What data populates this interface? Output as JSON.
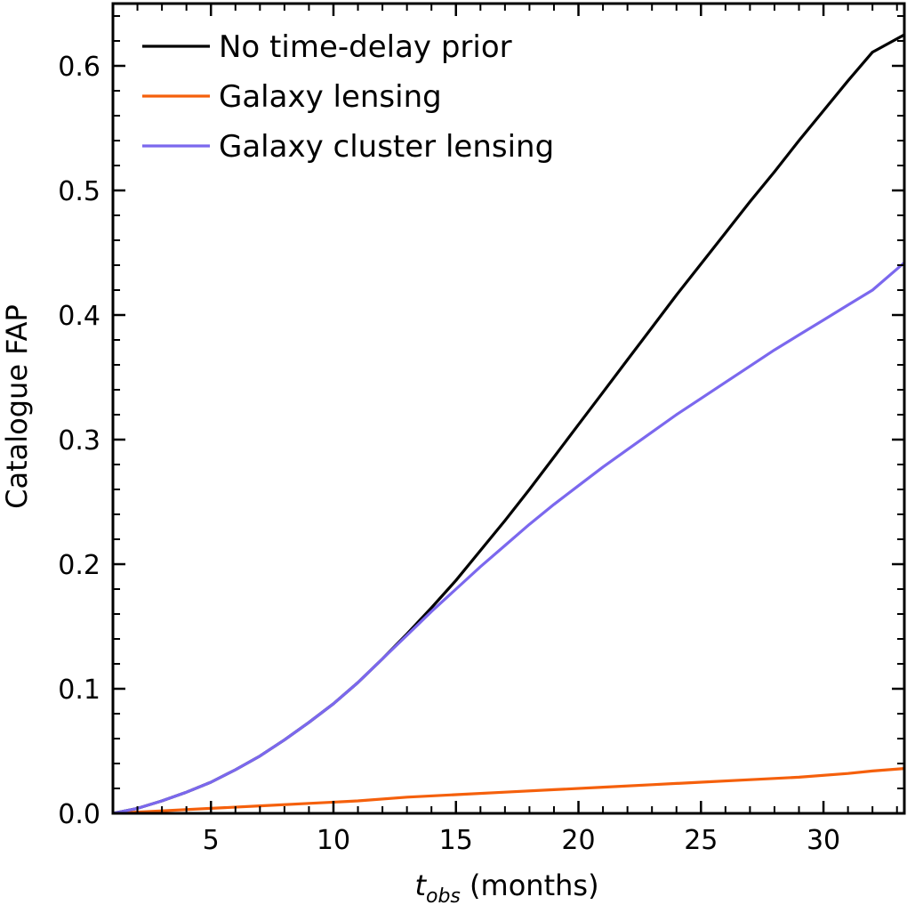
{
  "chart_data": {
    "type": "line",
    "xlabel": {
      "main": "t",
      "sub": "obs",
      "suffix": " (months)"
    },
    "ylabel": "Catalogue FAP",
    "xlim": [
      1,
      33.3
    ],
    "ylim": [
      0,
      0.65
    ],
    "xticks": [
      5,
      10,
      15,
      20,
      25,
      30
    ],
    "xtick_labels": [
      "5",
      "10",
      "15",
      "20",
      "25",
      "30"
    ],
    "yticks": [
      0.0,
      0.1,
      0.2,
      0.3,
      0.4,
      0.5,
      0.6
    ],
    "ytick_labels": [
      "0.0",
      "0.1",
      "0.2",
      "0.3",
      "0.4",
      "0.5",
      "0.6"
    ],
    "x_minor_step": 1,
    "y_minor_step": 0.02,
    "grid": false,
    "legend_position": "top-left",
    "series": [
      {
        "name": "No time-delay prior",
        "color": "#000000",
        "x": [
          1,
          2,
          3,
          4,
          5,
          6,
          7,
          8,
          9,
          10,
          11,
          12,
          13,
          14,
          15,
          16,
          17,
          18,
          19,
          20,
          21,
          22,
          23,
          24,
          25,
          26,
          27,
          28,
          29,
          30,
          31,
          32,
          33.3
        ],
        "y": [
          0.0,
          0.004,
          0.01,
          0.017,
          0.025,
          0.035,
          0.046,
          0.059,
          0.073,
          0.088,
          0.105,
          0.124,
          0.144,
          0.165,
          0.187,
          0.211,
          0.235,
          0.26,
          0.286,
          0.312,
          0.338,
          0.364,
          0.39,
          0.416,
          0.441,
          0.466,
          0.491,
          0.515,
          0.54,
          0.564,
          0.588,
          0.611,
          0.625
        ]
      },
      {
        "name": "Galaxy lensing",
        "color": "#f5600c",
        "x": [
          1,
          3,
          5,
          7,
          9,
          11,
          13,
          15,
          17,
          19,
          21,
          23,
          25,
          27,
          29,
          31,
          32,
          33.3
        ],
        "y": [
          0.0,
          0.002,
          0.004,
          0.006,
          0.008,
          0.01,
          0.013,
          0.015,
          0.017,
          0.019,
          0.021,
          0.023,
          0.025,
          0.027,
          0.029,
          0.032,
          0.034,
          0.036
        ]
      },
      {
        "name": "Galaxy cluster lensing",
        "color": "#7b68ee",
        "x": [
          1,
          2,
          3,
          4,
          5,
          6,
          7,
          8,
          9,
          10,
          11,
          12,
          13,
          14,
          15,
          16,
          17,
          18,
          19,
          20,
          21,
          22,
          23,
          24,
          25,
          26,
          27,
          28,
          29,
          30,
          31,
          32,
          33.3
        ],
        "y": [
          0.0,
          0.004,
          0.01,
          0.017,
          0.025,
          0.035,
          0.046,
          0.059,
          0.073,
          0.088,
          0.105,
          0.124,
          0.143,
          0.162,
          0.18,
          0.198,
          0.215,
          0.232,
          0.248,
          0.263,
          0.278,
          0.292,
          0.306,
          0.32,
          0.333,
          0.346,
          0.359,
          0.372,
          0.384,
          0.396,
          0.408,
          0.42,
          0.442
        ]
      }
    ]
  }
}
